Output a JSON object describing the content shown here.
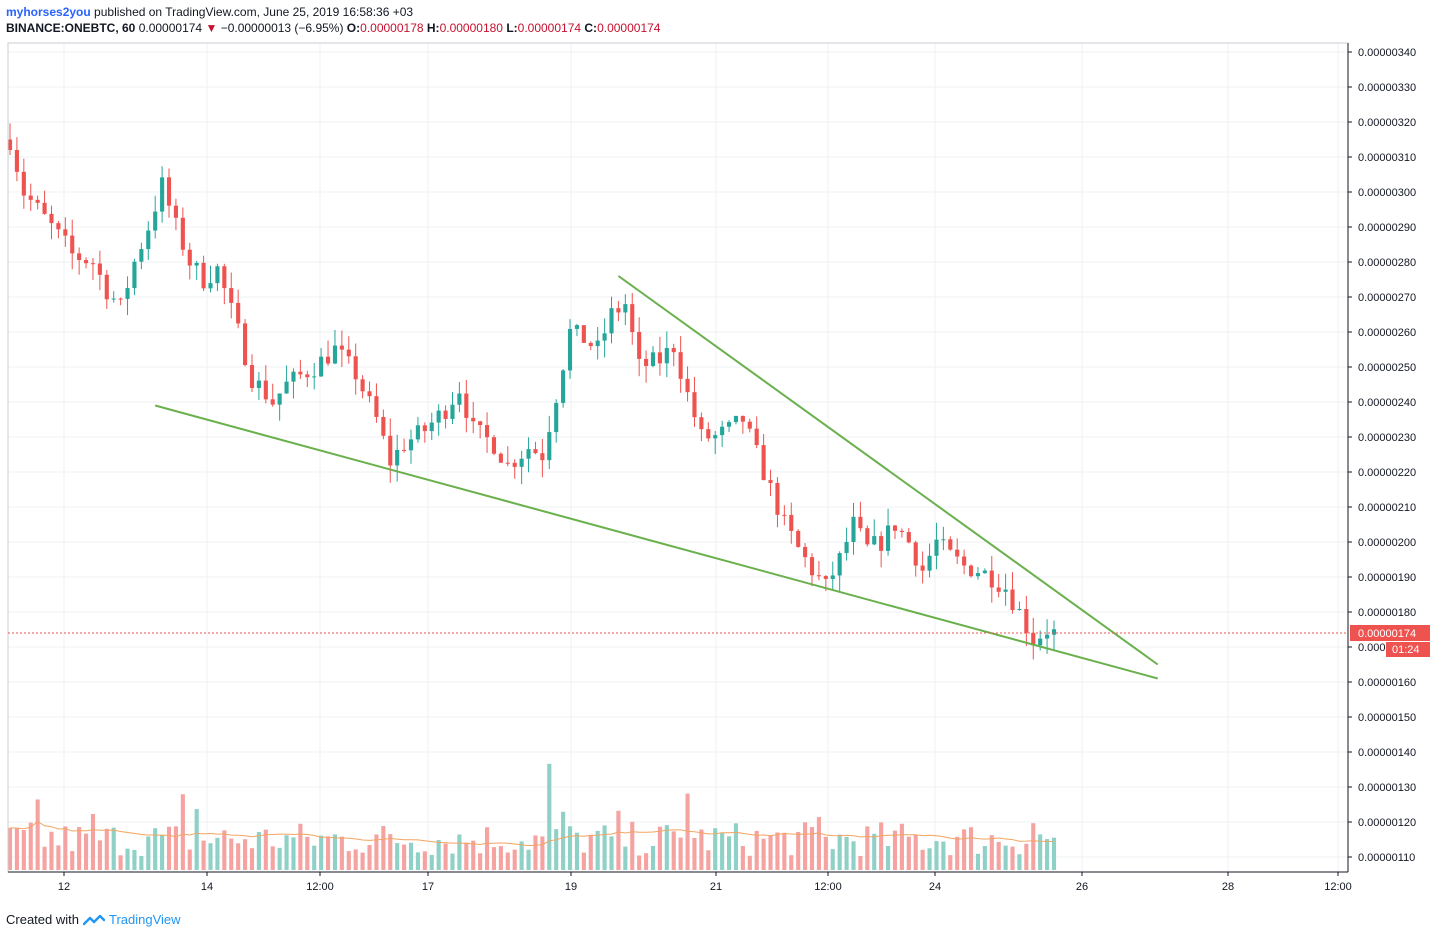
{
  "header": {
    "user": "myhorses2you",
    "published": "published on TradingView.com, June 25, 2019 16:58:36 +03",
    "symbol": "BINANCE:ONEBTC, 60",
    "last": "0.00000174",
    "arrow": "▼",
    "change": "−0.00000013 (−6.95%)",
    "o_label": "O:",
    "o_value": "0.00000178",
    "h_label": "H:",
    "h_value": "0.00000180",
    "l_label": "L:",
    "l_value": "0.00000174",
    "c_label": "C:",
    "c_value": "0.00000174"
  },
  "footer": {
    "created": "Created with",
    "brand": "TradingView",
    "logo_icon": "tradingview-logo-icon"
  },
  "colors": {
    "up": "#26a69a",
    "down": "#ef5350",
    "up_volume": "#8fd0c7",
    "down_volume": "#f5a3a1",
    "trendline": "#6ab04c",
    "volume_ma": "#f4a460",
    "price_tag": "#ef5350",
    "grid": "#eef0f3"
  },
  "chart_data": {
    "type": "candlestick",
    "symbol": "BINANCE:ONEBTC",
    "interval": "60",
    "y_axis_ticks": [
      "0.00000340",
      "0.00000330",
      "0.00000320",
      "0.00000310",
      "0.00000300",
      "0.00000290",
      "0.00000280",
      "0.00000270",
      "0.00000260",
      "0.00000250",
      "0.00000240",
      "0.00000230",
      "0.00000220",
      "0.00000210",
      "0.00000200",
      "0.00000190",
      "0.00000180",
      "0.00000170",
      "0.00000160",
      "0.00000150",
      "0.00000140",
      "0.00000130",
      "0.00000120",
      "0.00000110"
    ],
    "x_axis_ticks": [
      "12",
      "14",
      "12:00",
      "17",
      "19",
      "21",
      "12:00",
      "24",
      "26",
      "28",
      "12:00"
    ],
    "ylim": [
      1.07e-06,
      3.42e-06
    ],
    "last_price_label": "0.00000174",
    "last_price": 1.74e-06,
    "countdown_label": "01:24",
    "grid": true,
    "price_path": [
      [
        0,
        3.15e-06
      ],
      [
        2,
        3e-06
      ],
      [
        4,
        2.95e-06
      ],
      [
        6,
        2.9e-06
      ],
      [
        8,
        2.85e-06
      ],
      [
        9,
        2.82e-06
      ],
      [
        12,
        2.8e-06
      ],
      [
        14,
        2.72e-06
      ],
      [
        16,
        2.67e-06
      ],
      [
        18,
        2.8e-06
      ],
      [
        20,
        2.9e-06
      ],
      [
        22,
        3.02e-06
      ],
      [
        24,
        2.9e-06
      ],
      [
        26,
        2.8e-06
      ],
      [
        28,
        2.75e-06
      ],
      [
        30,
        2.78e-06
      ],
      [
        33,
        2.6e-06
      ],
      [
        35,
        2.47e-06
      ],
      [
        38,
        2.4e-06
      ],
      [
        40,
        2.45e-06
      ],
      [
        44,
        2.5e-06
      ],
      [
        47,
        2.55e-06
      ],
      [
        50,
        2.48e-06
      ],
      [
        53,
        2.35e-06
      ],
      [
        55,
        2.23e-06
      ],
      [
        57,
        2.28e-06
      ],
      [
        60,
        2.32e-06
      ],
      [
        63,
        2.38e-06
      ],
      [
        65,
        2.44e-06
      ],
      [
        67,
        2.32e-06
      ],
      [
        70,
        2.28e-06
      ],
      [
        72,
        2.22e-06
      ],
      [
        75,
        2.27e-06
      ],
      [
        77,
        2.25e-06
      ],
      [
        79,
        2.42e-06
      ],
      [
        81,
        2.6e-06
      ],
      [
        83,
        2.58e-06
      ],
      [
        85,
        2.55e-06
      ],
      [
        87,
        2.65e-06
      ],
      [
        89,
        2.68e-06
      ],
      [
        91,
        2.5e-06
      ],
      [
        94,
        2.52e-06
      ],
      [
        96,
        2.56e-06
      ],
      [
        98,
        2.42e-06
      ],
      [
        100,
        2.3e-06
      ],
      [
        102,
        2.3e-06
      ],
      [
        104,
        2.32e-06
      ],
      [
        106,
        2.35e-06
      ],
      [
        108,
        2.25e-06
      ],
      [
        110,
        2.15e-06
      ],
      [
        112,
        2.05e-06
      ],
      [
        114,
        1.98e-06
      ],
      [
        116,
        1.92e-06
      ],
      [
        118,
        1.87e-06
      ],
      [
        120,
        1.95e-06
      ],
      [
        122,
        2.05e-06
      ],
      [
        124,
        1.98e-06
      ],
      [
        126,
        2e-06
      ],
      [
        128,
        2.05e-06
      ],
      [
        130,
        2e-06
      ],
      [
        132,
        1.92e-06
      ],
      [
        134,
        2e-06
      ],
      [
        136,
        1.96e-06
      ],
      [
        138,
        1.93e-06
      ],
      [
        140,
        1.92e-06
      ],
      [
        142,
        1.9e-06
      ],
      [
        144,
        1.87e-06
      ],
      [
        146,
        1.8e-06
      ],
      [
        148,
        1.72e-06
      ],
      [
        150,
        1.75e-06
      ],
      [
        151,
        1.74e-06
      ]
    ],
    "candle_count": 152,
    "trendlines": [
      {
        "name": "support",
        "from": [
          21,
          2.39e-06
        ],
        "to": [
          166,
          1.61e-06
        ]
      },
      {
        "name": "resistance",
        "from": [
          88,
          2.76e-06
        ],
        "to": [
          166,
          1.65e-06
        ]
      }
    ],
    "volume": {
      "ma_period": 20,
      "spikes": [
        [
          4,
          3.0
        ],
        [
          12,
          2.3
        ],
        [
          25,
          3.2
        ],
        [
          27,
          2.6
        ],
        [
          78,
          4.6
        ],
        [
          80,
          2.5
        ],
        [
          88,
          2.4
        ],
        [
          98,
          3.4
        ],
        [
          117,
          2.2
        ],
        [
          148,
          2.0
        ]
      ]
    }
  }
}
